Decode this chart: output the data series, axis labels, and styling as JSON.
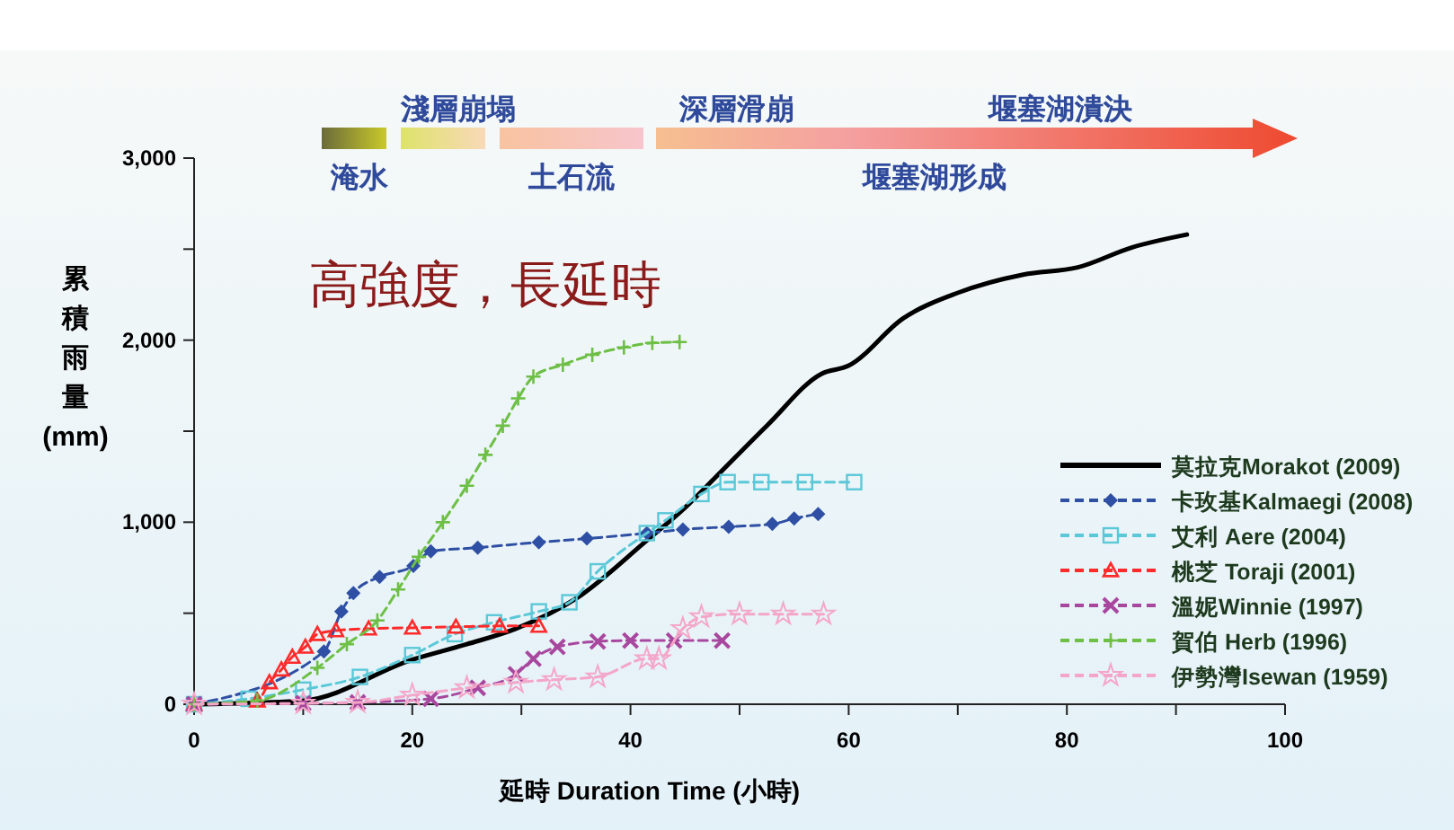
{
  "chart_data": {
    "type": "line",
    "xlabel": "延時 Duration Time (小時)",
    "ylabel": "累積雨量(mm)",
    "xlim": [
      0,
      100
    ],
    "ylim": [
      0,
      3000
    ],
    "xticks": [
      0,
      {
        "value": 10,
        "label": null
      },
      20,
      {
        "value": 30,
        "label": null
      },
      40,
      {
        "value": 50,
        "label": null
      },
      60,
      {
        "value": 70,
        "label": null
      },
      80,
      {
        "value": 90,
        "label": null
      },
      100
    ],
    "yticks": [
      0,
      {
        "value": 500,
        "label": null
      },
      {
        "value": 1000,
        "label": "1,000"
      },
      {
        "value": 1500,
        "label": null
      },
      {
        "value": 2000,
        "label": "2,000"
      },
      {
        "value": 2500,
        "label": null
      },
      {
        "value": 3000,
        "label": "3,000"
      }
    ],
    "grid": false,
    "legend": "right",
    "line_style": "dashed",
    "annotations": [
      "淺層崩塌",
      "深層滑崩",
      "堰塞湖潰決",
      "淹水",
      "土石流",
      "堰塞湖形成",
      "高強度，長延時"
    ],
    "series": [
      {
        "name": "莫拉克Morakot (2009)",
        "color": "#000000",
        "marker": "none",
        "line_style": "solid",
        "x": [
          0,
          10,
          20,
          25,
          29.5,
          35,
          41.5,
          45,
          47.6,
          52.5,
          57.5,
          60,
          65,
          70,
          76,
          81,
          86,
          91
        ],
        "values": [
          0,
          20,
          245,
          330,
          415,
          580,
          900,
          1080,
          1235,
          1530,
          1815,
          1860,
          2120,
          2260,
          2360,
          2400,
          2510,
          2580
        ]
      },
      {
        "name": "卡玫基Kalmaegi (2008)",
        "color": "#2e4fa3",
        "marker": "diamond",
        "x": [
          0,
          11.9,
          13.5,
          14.6,
          17,
          20.1,
          21.7,
          26,
          31.6,
          36,
          41.5,
          44.8,
          49,
          53,
          55,
          57.2
        ],
        "values": [
          0,
          290,
          510,
          610,
          700,
          760,
          840,
          860,
          890,
          910,
          940,
          960,
          975,
          990,
          1020,
          1045
        ]
      },
      {
        "name": "艾利 Aere (2004)",
        "color": "#5bc8d8",
        "marker": "square",
        "x": [
          0,
          5,
          10,
          15.2,
          20,
          23.9,
          27.5,
          31.6,
          34.4,
          37,
          41.5,
          43.2,
          46.5,
          48.9,
          52,
          56,
          60.5
        ],
        "values": [
          0,
          30,
          80,
          150,
          270,
          385,
          450,
          510,
          560,
          730,
          940,
          1010,
          1155,
          1220,
          1220,
          1220,
          1220
        ]
      },
      {
        "name": "桃芝 Toraji (2001)",
        "color": "#ff2a2a",
        "marker": "triangle",
        "x": [
          0,
          5.8,
          6.9,
          8,
          9,
          10.2,
          11.3,
          13,
          16,
          20,
          24,
          28,
          31.6
        ],
        "values": [
          0,
          20,
          120,
          190,
          260,
          315,
          385,
          405,
          415,
          420,
          425,
          430,
          430
        ]
      },
      {
        "name": "溫妮Winnie (1997)",
        "color": "#a8479e",
        "marker": "cross",
        "x": [
          0,
          10,
          15,
          21.7,
          26,
          29.5,
          31.1,
          33.3,
          37,
          40,
          44,
          48.4
        ],
        "values": [
          0,
          5,
          10,
          30,
          90,
          165,
          250,
          315,
          345,
          350,
          350,
          350
        ]
      },
      {
        "name": "賀伯 Herb (1996)",
        "color": "#6dbf45",
        "marker": "plus",
        "x": [
          0,
          5.8,
          11.3,
          14,
          16.8,
          18.7,
          20.6,
          22.8,
          25,
          26.7,
          28.3,
          29.7,
          31.1,
          33.8,
          36.5,
          39.4,
          42,
          44.5
        ],
        "values": [
          0,
          20,
          200,
          330,
          460,
          630,
          810,
          1000,
          1200,
          1370,
          1530,
          1680,
          1800,
          1865,
          1920,
          1960,
          1985,
          1990
        ]
      },
      {
        "name": "伊勢灣Isewan (1959)",
        "color": "#f4a6c8",
        "marker": "star",
        "x": [
          0,
          10,
          15,
          20,
          25,
          29.5,
          33,
          37,
          41.5,
          42.6,
          44.8,
          46.5,
          50,
          54,
          57.7
        ],
        "values": [
          0,
          5,
          10,
          50,
          90,
          120,
          135,
          150,
          250,
          250,
          415,
          480,
          495,
          495,
          495
        ]
      }
    ]
  }
}
